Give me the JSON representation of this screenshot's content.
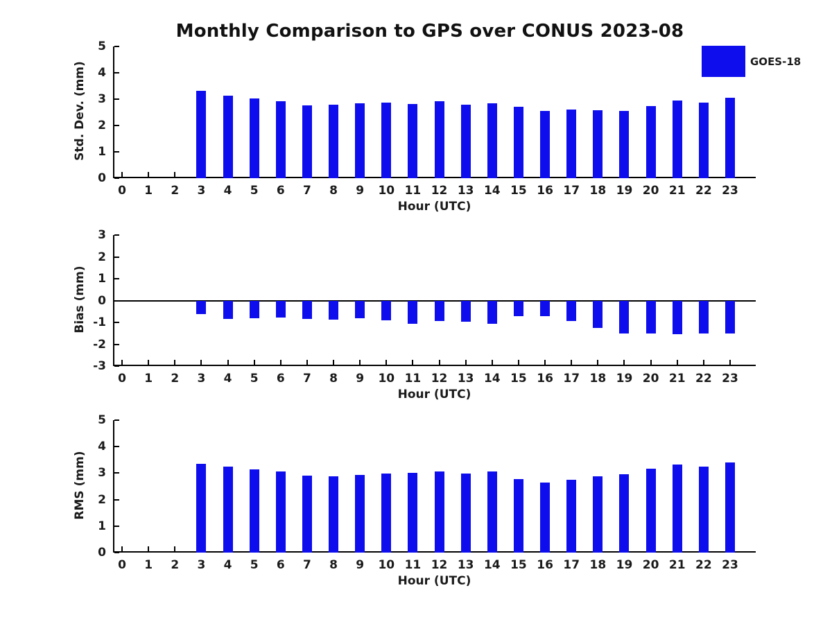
{
  "title": "Monthly Comparison to GPS over CONUS 2023-08",
  "legend": {
    "label": "GOES-18",
    "position": "top-right",
    "swatch_color": "#0d0dee"
  },
  "colors": {
    "bar": "#0d0dee",
    "axis": "#000000",
    "text": "#1a1a1a",
    "background": "#ffffff"
  },
  "chart_data": [
    {
      "type": "bar",
      "title": "",
      "xlabel": "Hour (UTC)",
      "ylabel": "Std. Dev. (mm)",
      "ylim": [
        0,
        5
      ],
      "yticks": [
        0,
        1,
        2,
        3,
        4,
        5
      ],
      "grid": false,
      "series_name": "GOES-18",
      "categories": [
        "0",
        "1",
        "2",
        "3",
        "4",
        "5",
        "6",
        "7",
        "8",
        "9",
        "10",
        "11",
        "12",
        "13",
        "14",
        "15",
        "16",
        "17",
        "18",
        "19",
        "20",
        "21",
        "22",
        "23"
      ],
      "values": [
        null,
        null,
        null,
        3.32,
        3.12,
        3.02,
        2.93,
        2.76,
        2.79,
        2.83,
        2.86,
        2.81,
        2.91,
        2.8,
        2.85,
        2.72,
        2.54,
        2.6,
        2.59,
        2.56,
        2.75,
        2.94,
        2.86,
        3.04
      ]
    },
    {
      "type": "bar",
      "title": "",
      "xlabel": "Hour (UTC)",
      "ylabel": "Bias (mm)",
      "ylim": [
        -3,
        3
      ],
      "yticks": [
        -3,
        -2,
        -1,
        0,
        1,
        2,
        3
      ],
      "zero_line": true,
      "grid": false,
      "series_name": "GOES-18",
      "categories": [
        "0",
        "1",
        "2",
        "3",
        "4",
        "5",
        "6",
        "7",
        "8",
        "9",
        "10",
        "11",
        "12",
        "13",
        "14",
        "15",
        "16",
        "17",
        "18",
        "19",
        "20",
        "21",
        "22",
        "23"
      ],
      "values": [
        null,
        null,
        null,
        -0.62,
        -0.84,
        -0.81,
        -0.78,
        -0.84,
        -0.87,
        -0.81,
        -0.89,
        -1.05,
        -0.94,
        -0.96,
        -1.07,
        -0.73,
        -0.71,
        -0.94,
        -1.25,
        -1.51,
        -1.51,
        -1.55,
        -1.51,
        -1.51
      ]
    },
    {
      "type": "bar",
      "title": "",
      "xlabel": "Hour (UTC)",
      "ylabel": "RMS (mm)",
      "ylim": [
        0,
        5
      ],
      "yticks": [
        0,
        1,
        2,
        3,
        4,
        5
      ],
      "grid": false,
      "series_name": "GOES-18",
      "categories": [
        "0",
        "1",
        "2",
        "3",
        "4",
        "5",
        "6",
        "7",
        "8",
        "9",
        "10",
        "11",
        "12",
        "13",
        "14",
        "15",
        "16",
        "17",
        "18",
        "19",
        "20",
        "21",
        "22",
        "23"
      ],
      "values": [
        null,
        null,
        null,
        3.34,
        3.25,
        3.13,
        3.07,
        2.9,
        2.88,
        2.92,
        2.98,
        3.01,
        3.05,
        2.98,
        3.05,
        2.78,
        2.64,
        2.74,
        2.87,
        2.95,
        3.16,
        3.32,
        3.25,
        3.4
      ]
    }
  ]
}
